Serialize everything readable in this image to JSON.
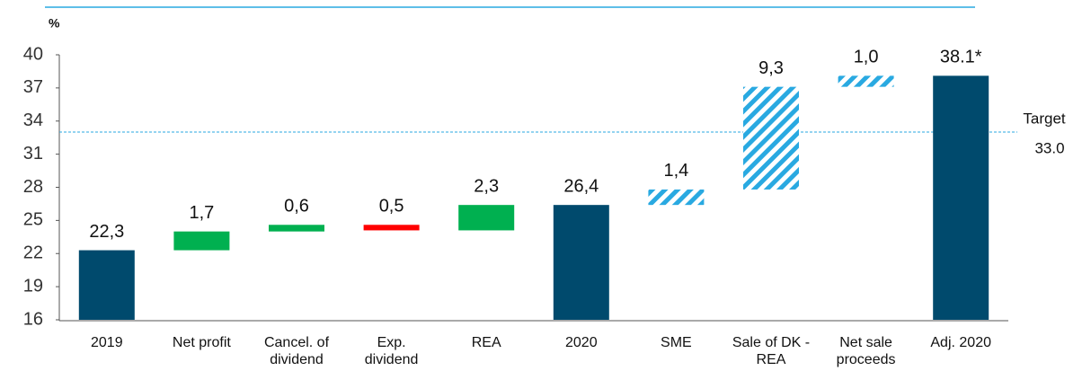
{
  "chart_data": {
    "type": "waterfall",
    "unit_label": "%",
    "categories": [
      "2019",
      "Net profit",
      "Cancel. of dividend",
      "Exp. dividend",
      "REA",
      "2020",
      "SME",
      "Sale of DK - REA",
      "Net sale proceeds",
      "Adj. 2020"
    ],
    "values": [
      22.3,
      1.7,
      0.6,
      -0.5,
      2.3,
      26.4,
      1.4,
      9.3,
      1.0,
      38.1
    ],
    "value_labels": [
      "22,3",
      "1,7",
      "0,6",
      "0,5",
      "2,3",
      "26,4",
      "1,4",
      "9,3",
      "1,0",
      "38.1*"
    ],
    "totals": [
      0,
      5,
      9
    ],
    "hatched": [
      6,
      7,
      8
    ],
    "colors": [
      "#004a6d",
      "#00b050",
      "#00b050",
      "#ff0000",
      "#00b050",
      "#004a6d",
      "#29a9e1",
      "#29a9e1",
      "#29a9e1",
      "#004a6d"
    ],
    "ylim": [
      16,
      40
    ],
    "yticks": [
      16,
      19,
      22,
      25,
      28,
      31,
      34,
      37,
      40
    ],
    "target": {
      "text": "Target",
      "value": 33,
      "value_label": "33.0",
      "color": "#29a9e1"
    }
  }
}
